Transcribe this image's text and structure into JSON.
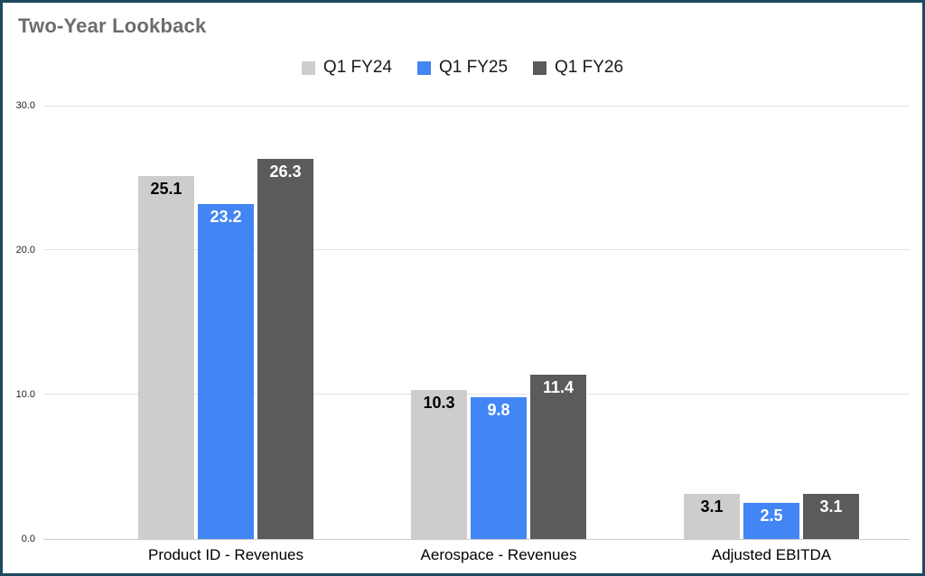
{
  "chart_data": {
    "type": "bar",
    "title": "Two-Year Lookback",
    "categories": [
      "Product ID - Revenues",
      "Aerospace - Revenues",
      "Adjusted EBITDA"
    ],
    "series": [
      {
        "name": "Q1 FY24",
        "color": "#cdcdcd",
        "label_color": "#000000",
        "values": [
          25.1,
          10.3,
          3.1
        ]
      },
      {
        "name": "Q1 FY25",
        "color": "#4285f4",
        "label_color": "#ffffff",
        "values": [
          23.2,
          9.8,
          2.5
        ]
      },
      {
        "name": "Q1 FY26",
        "color": "#5b5b5b",
        "label_color": "#ffffff",
        "values": [
          26.3,
          11.4,
          3.1
        ]
      }
    ],
    "ylim": [
      0,
      30
    ],
    "yticks": [
      "30.0",
      "20.0",
      "10.0",
      "0.0"
    ],
    "grid": true,
    "legend_position": "top",
    "xlabel": "",
    "ylabel": ""
  },
  "colors": {
    "border": "#1b4a5e",
    "title": "#6f6b6b",
    "gridline": "#e2e2e2",
    "baseline": "#cccccc"
  }
}
